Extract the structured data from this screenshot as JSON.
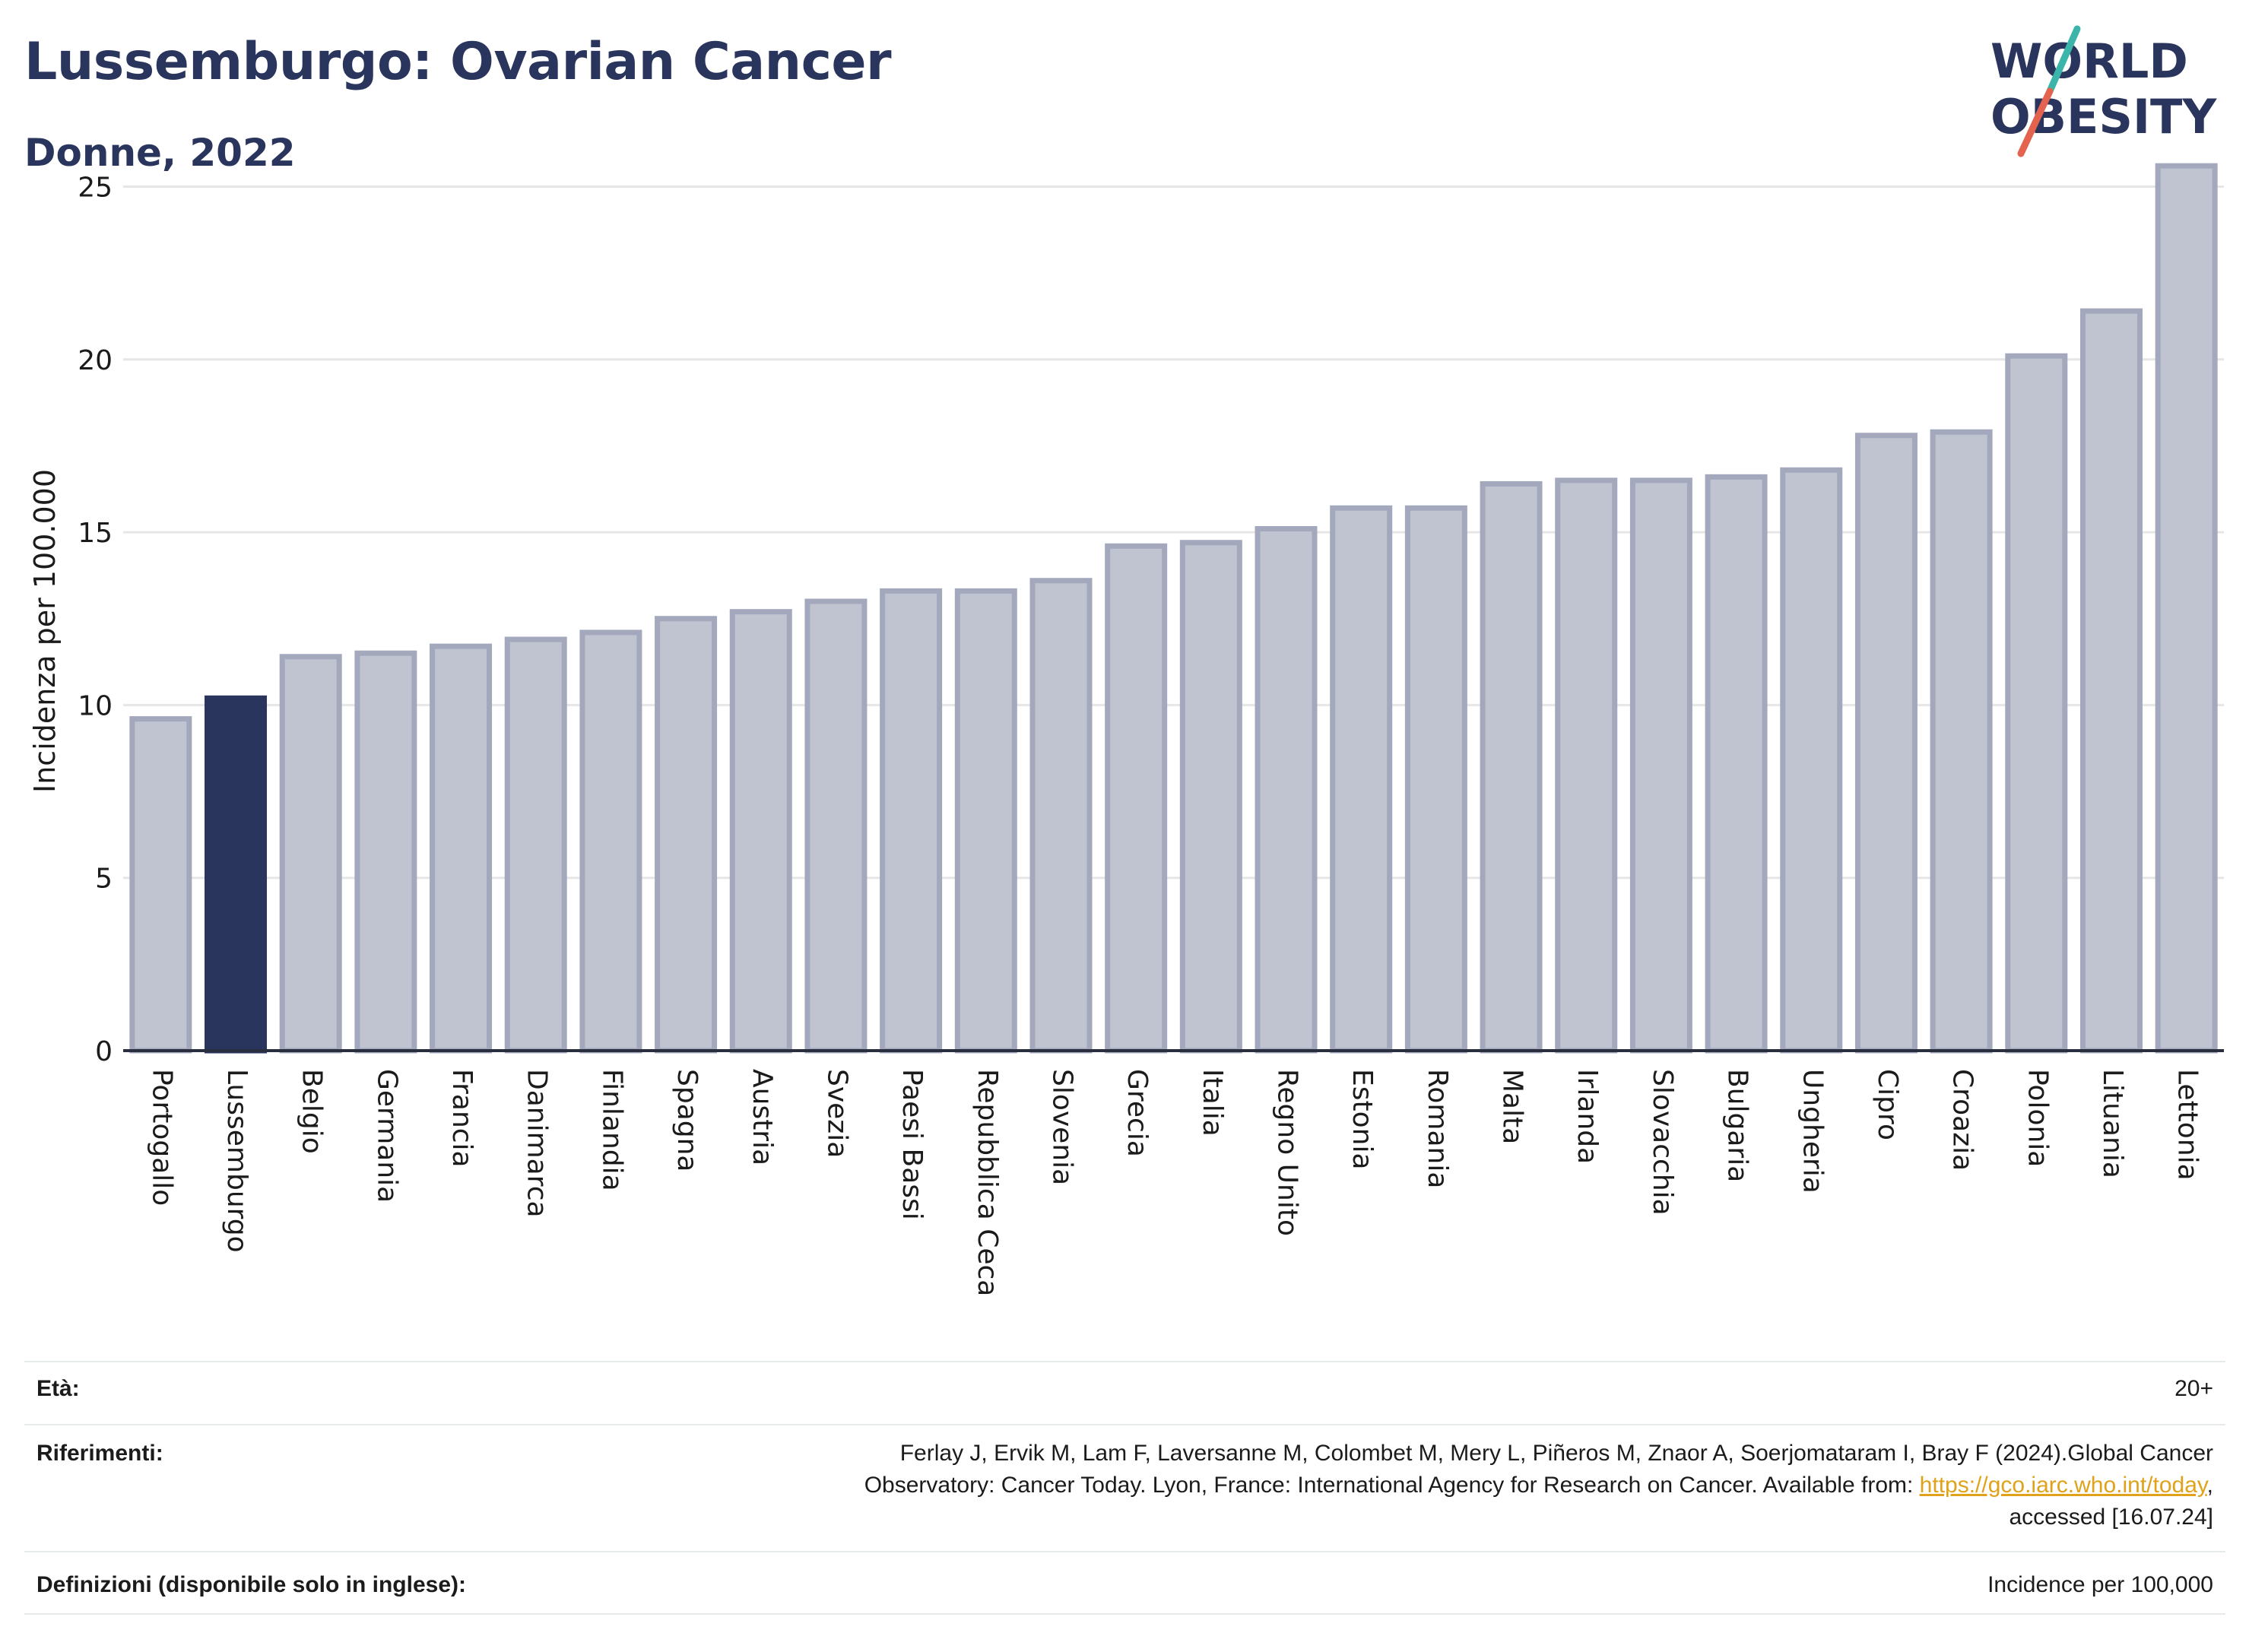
{
  "header": {
    "title": "Lussemburgo: Ovarian Cancer",
    "subtitle": "Donne, 2022"
  },
  "logo": {
    "line1": "WORLD",
    "line2": "OBESITY",
    "colors": {
      "text": "#2a355d",
      "slash_top": "#3bb5a9",
      "slash_bottom": "#e3634e"
    }
  },
  "chart_data": {
    "type": "bar",
    "ylabel": "Incidenza per 100.000",
    "xlabel": "",
    "ylim": [
      0,
      26
    ],
    "yticks": [
      0,
      5,
      10,
      15,
      20,
      25
    ],
    "grid": true,
    "highlight": "Lussemburgo",
    "colors": {
      "bar": "#c0c4d1",
      "bar_border": "#a3a8bd",
      "highlight": "#2a355d"
    },
    "categories": [
      "Portogallo",
      "Lussemburgo",
      "Belgio",
      "Germania",
      "Francia",
      "Danimarca",
      "Finlandia",
      "Spagna",
      "Austria",
      "Svezia",
      "Paesi Bassi",
      "Repubblica Ceca",
      "Slovenia",
      "Grecia",
      "Italia",
      "Regno Unito",
      "Estonia",
      "Romania",
      "Malta",
      "Irlanda",
      "Slovacchia",
      "Bulgaria",
      "Ungheria",
      "Cipro",
      "Croazia",
      "Polonia",
      "Lituania",
      "Lettonia"
    ],
    "values": [
      9.6,
      10.2,
      11.4,
      11.5,
      11.7,
      11.9,
      12.1,
      12.5,
      12.7,
      13.0,
      13.3,
      13.3,
      13.6,
      14.6,
      14.7,
      15.1,
      15.7,
      15.7,
      16.4,
      16.5,
      16.5,
      16.6,
      16.8,
      17.8,
      17.9,
      20.1,
      21.4,
      25.6
    ]
  },
  "footer": {
    "age_label": "Età:",
    "age_value": "20+",
    "ref_label": "Riferimenti:",
    "ref_text_1": "Ferlay J, Ervik M, Lam F, Laversanne M, Colombet M, Mery L, Piñeros M, Znaor A, Soerjomataram I, Bray F (2024).Global Cancer",
    "ref_text_2a": "Observatory: Cancer Today. Lyon, France: International Agency for Research on Cancer. Available from: ",
    "ref_link": "https://gco.iarc.who.int/today",
    "ref_text_2b": ",",
    "ref_text_3": "accessed [16.07.24]",
    "def_label": "Definizioni (disponibile solo in inglese):",
    "def_value": "Incidence per 100,000"
  }
}
